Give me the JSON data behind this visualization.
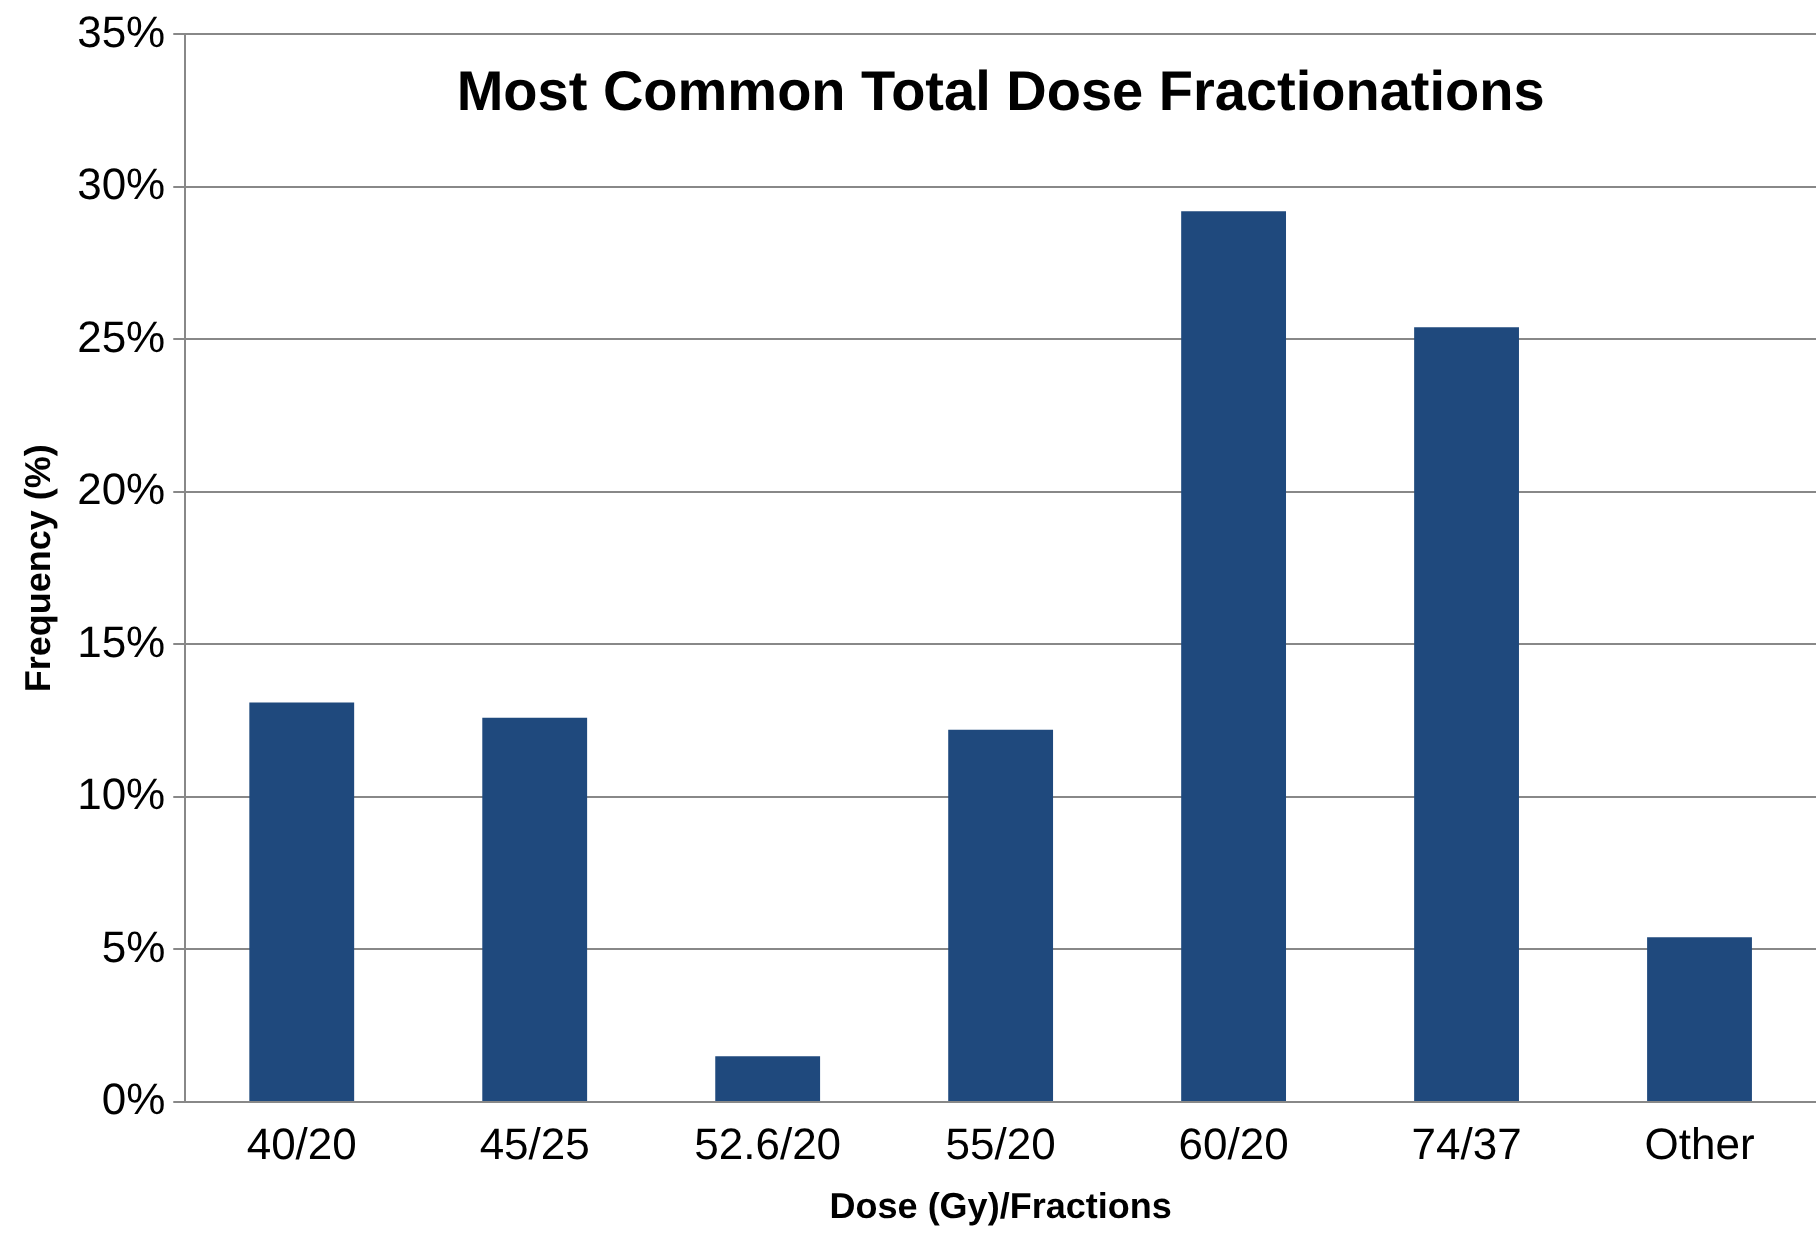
{
  "chart_data": {
    "type": "bar",
    "title": "Most Common Total Dose Fractionations",
    "xlabel": "Dose (Gy)/Fractions",
    "ylabel": "Frequency (%)",
    "categories": [
      "40/20",
      "45/25",
      "52.6/20",
      "55/20",
      "60/20",
      "74/37",
      "Other"
    ],
    "values": [
      13.1,
      12.6,
      1.5,
      12.2,
      29.2,
      25.4,
      5.4
    ],
    "color": "#1f497d",
    "ylim": [
      0,
      35
    ],
    "yticks": [
      {
        "value": 0,
        "label": "0%"
      },
      {
        "value": 5,
        "label": "5%"
      },
      {
        "value": 10,
        "label": "10%"
      },
      {
        "value": 15,
        "label": "15%"
      },
      {
        "value": 20,
        "label": "20%"
      },
      {
        "value": 25,
        "label": "25%"
      },
      {
        "value": 30,
        "label": "30%"
      },
      {
        "value": 35,
        "label": "35%"
      }
    ],
    "grid": "y",
    "legend": false
  }
}
